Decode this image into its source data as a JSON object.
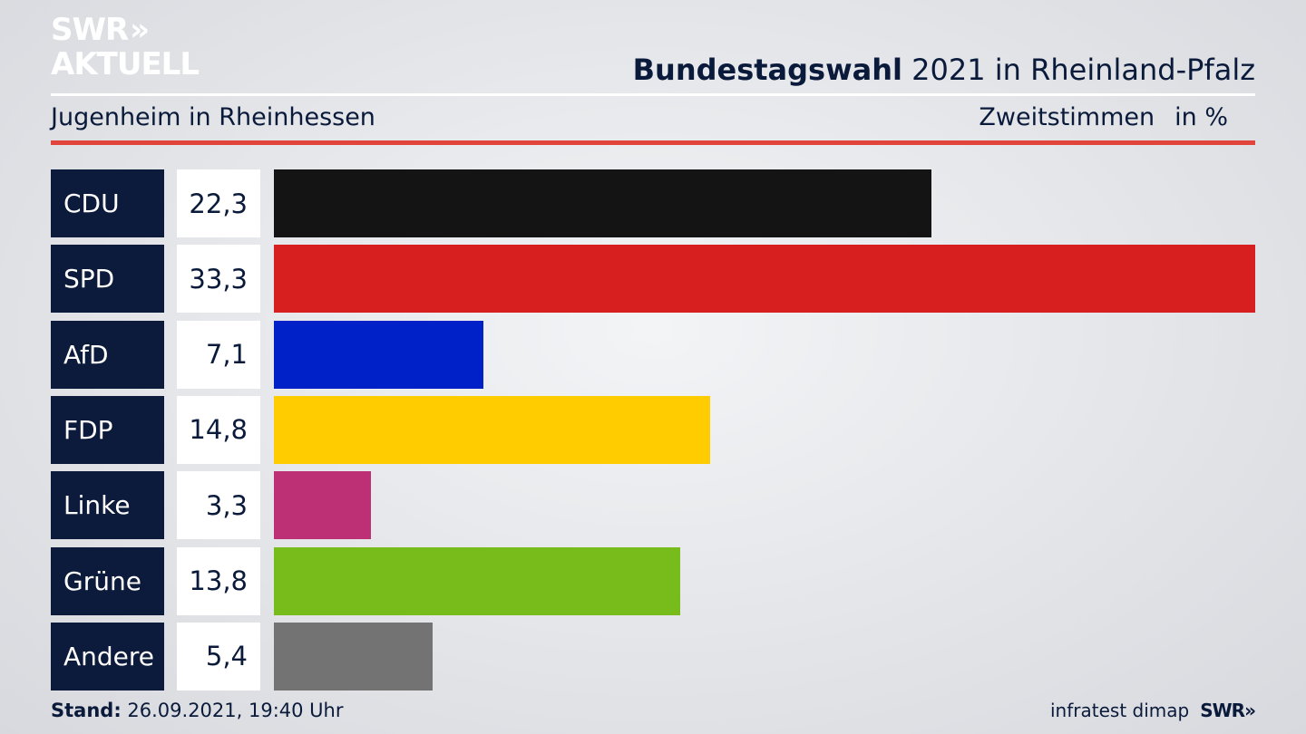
{
  "brand": {
    "logo_line1": "SWR",
    "logo_arrows": "»",
    "logo_line2": "AKTUELL"
  },
  "header": {
    "title_bold": "Bundestagswahl",
    "title_rest": " 2021 in Rheinland-Pfalz",
    "subtitle": "Jugenheim in Rheinhessen",
    "vote_type": "Zweitstimmen",
    "unit": "in %"
  },
  "chart_data": {
    "type": "bar",
    "orientation": "horizontal",
    "categories": [
      "CDU",
      "SPD",
      "AfD",
      "FDP",
      "Linke",
      "Grüne",
      "Andere"
    ],
    "values": [
      22.3,
      33.3,
      7.1,
      14.8,
      3.3,
      13.8,
      5.4
    ],
    "value_labels": [
      "22,3",
      "33,3",
      "7,1",
      "14,8",
      "3,3",
      "13,8",
      "5,4"
    ],
    "colors": [
      "#141414",
      "#d71f1f",
      "#0021c8",
      "#ffcc00",
      "#bd3075",
      "#78bc1b",
      "#737373"
    ]
  },
  "footer": {
    "stand_label": "Stand:",
    "stand_value": " 26.09.2021, 19:40 Uhr",
    "source": "infratest dimap",
    "brand": "SWR»"
  }
}
